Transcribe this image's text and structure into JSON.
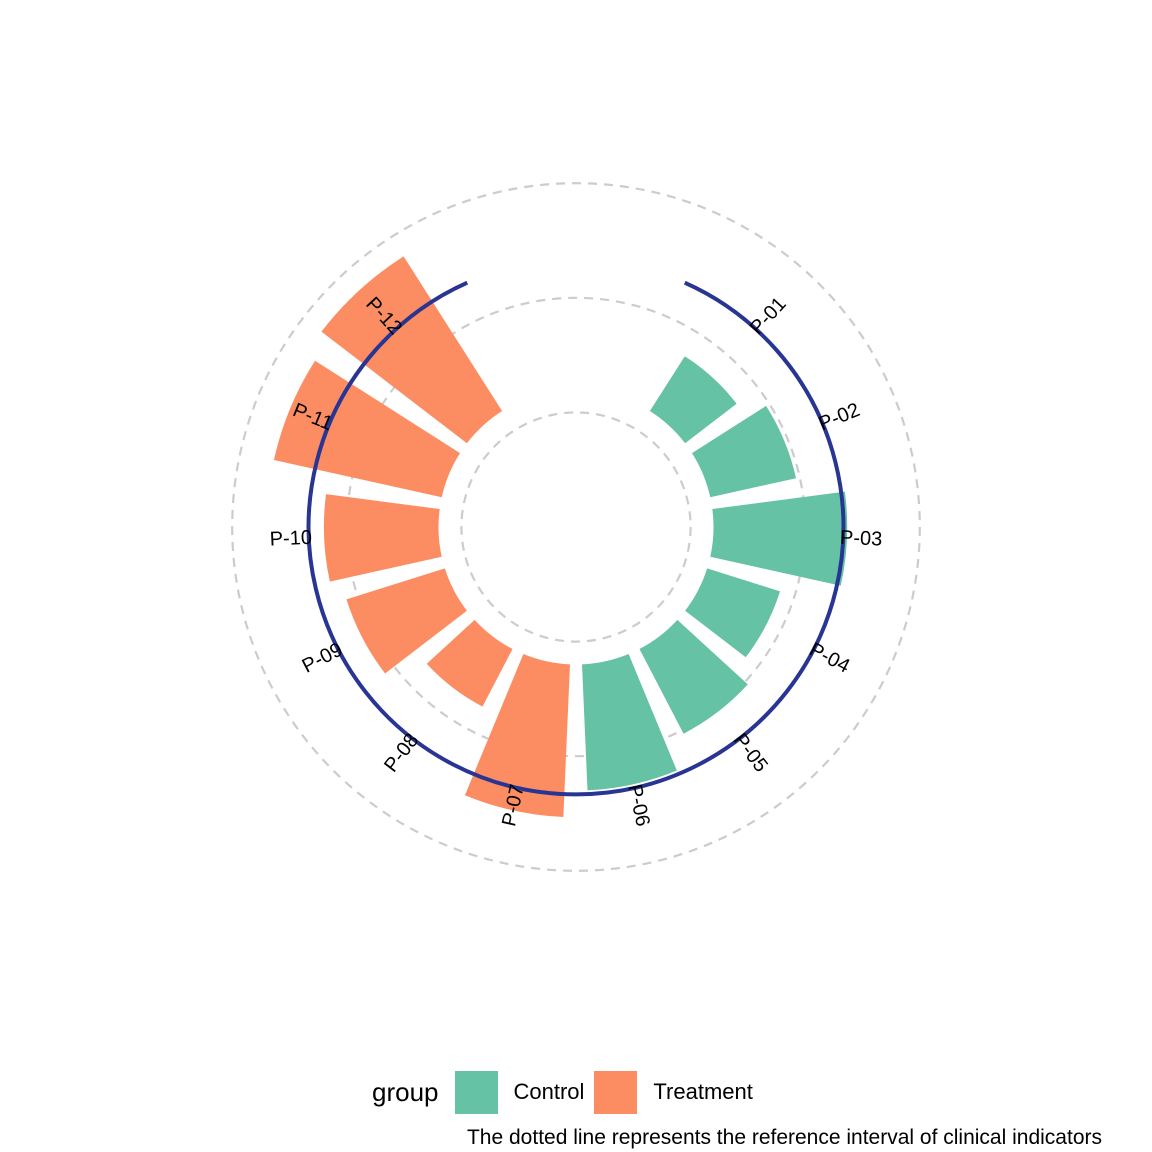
{
  "chart_data": {
    "type": "bar",
    "subtype": "circular-barplot",
    "categories": [
      "P-01",
      "P-02",
      "P-03",
      "P-04",
      "P-05",
      "P-06",
      "P-07",
      "P-08",
      "P-09",
      "P-10",
      "P-11",
      "P-12"
    ],
    "values": [
      5.3,
      5.9,
      7.1,
      5.6,
      6.1,
      6.9,
      7.6,
      5.3,
      6.3,
      6.6,
      8.1,
      8.4
    ],
    "groups": [
      "Control",
      "Control",
      "Control",
      "Control",
      "Control",
      "Control",
      "Treatment",
      "Treatment",
      "Treatment",
      "Treatment",
      "Treatment",
      "Treatment"
    ],
    "reference_value": 7.0,
    "gridlines": [
      3,
      6,
      9
    ],
    "hole_value": 3.6,
    "ylim": [
      0,
      10
    ],
    "colors": {
      "Control": "#66c2a5",
      "Treatment": "#fc8d62",
      "reference_line": "#283593",
      "grid": "#cccccc"
    }
  },
  "legend": {
    "title": "group",
    "items": [
      {
        "label": "Control",
        "color": "#66c2a5"
      },
      {
        "label": "Treatment",
        "color": "#fc8d62"
      }
    ]
  },
  "caption": "The dotted line represents the reference interval of clinical indicators"
}
